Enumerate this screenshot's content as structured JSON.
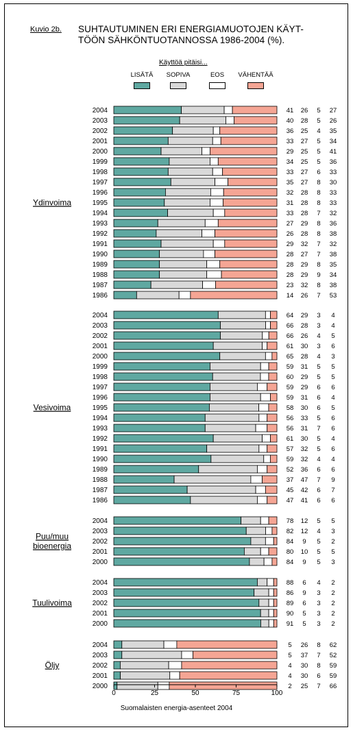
{
  "figure_label": "Kuvio 2b.",
  "title_line1": "SUHTAUTUMINEN ERI ENERGIAMUOTOJEN KÄYT-",
  "title_line2": "TÖÖN SÄHKÖNTUOTANNOSSA 1986-2004 (%).",
  "legend_title": "Käyttöä pitäisi...",
  "footer": "Suomalaisten energia-asenteet 2004",
  "chart_data": {
    "type": "bar",
    "stacked": true,
    "orientation": "horizontal",
    "xlim": [
      0,
      100
    ],
    "x_ticks": [
      "0",
      "25",
      "50",
      "75",
      "100"
    ],
    "legend": [
      {
        "label": "LISÄTÄ",
        "color": "#5fa8a1"
      },
      {
        "label": "SOPIVA",
        "color": "#d9d9d9"
      },
      {
        "label": "EOS",
        "color": "#ffffff"
      },
      {
        "label": "VÄHENTÄÄ",
        "color": "#f5a594"
      }
    ],
    "groups": [
      {
        "name": "Ydinvoima",
        "rows": [
          {
            "year": "2004",
            "values": [
              41,
              26,
              5,
              27
            ]
          },
          {
            "year": "2003",
            "values": [
              40,
              28,
              5,
              26
            ]
          },
          {
            "year": "2002",
            "values": [
              36,
              25,
              4,
              35
            ]
          },
          {
            "year": "2001",
            "values": [
              33,
              27,
              5,
              34
            ]
          },
          {
            "year": "2000",
            "values": [
              29,
              25,
              5,
              41
            ]
          },
          {
            "year": "1999",
            "values": [
              34,
              25,
              5,
              36
            ]
          },
          {
            "year": "1998",
            "values": [
              33,
              27,
              6,
              33
            ]
          },
          {
            "year": "1997",
            "values": [
              35,
              27,
              8,
              30
            ]
          },
          {
            "year": "1996",
            "values": [
              32,
              28,
              8,
              33
            ]
          },
          {
            "year": "1995",
            "values": [
              31,
              28,
              8,
              33
            ]
          },
          {
            "year": "1994",
            "values": [
              33,
              28,
              7,
              32
            ]
          },
          {
            "year": "1993",
            "values": [
              27,
              29,
              8,
              36
            ]
          },
          {
            "year": "1992",
            "values": [
              26,
              28,
              8,
              38
            ]
          },
          {
            "year": "1991",
            "values": [
              29,
              32,
              7,
              32
            ]
          },
          {
            "year": "1990",
            "values": [
              28,
              27,
              7,
              38
            ]
          },
          {
            "year": "1989",
            "values": [
              28,
              29,
              8,
              35
            ]
          },
          {
            "year": "1988",
            "values": [
              28,
              29,
              9,
              34
            ]
          },
          {
            "year": "1987",
            "values": [
              23,
              32,
              8,
              38
            ]
          },
          {
            "year": "1986",
            "values": [
              14,
              26,
              7,
              53
            ]
          }
        ]
      },
      {
        "name": "Vesivoima",
        "rows": [
          {
            "year": "2004",
            "values": [
              64,
              29,
              3,
              4
            ]
          },
          {
            "year": "2003",
            "values": [
              66,
              28,
              3,
              4
            ]
          },
          {
            "year": "2002",
            "values": [
              66,
              26,
              4,
              5
            ]
          },
          {
            "year": "2001",
            "values": [
              61,
              30,
              3,
              6
            ]
          },
          {
            "year": "2000",
            "values": [
              65,
              28,
              4,
              3
            ]
          },
          {
            "year": "1999",
            "values": [
              59,
              31,
              5,
              5
            ]
          },
          {
            "year": "1998",
            "values": [
              60,
              29,
              5,
              5
            ]
          },
          {
            "year": "1997",
            "values": [
              59,
              29,
              6,
              6
            ]
          },
          {
            "year": "1996",
            "values": [
              59,
              31,
              6,
              4
            ]
          },
          {
            "year": "1995",
            "values": [
              58,
              30,
              6,
              5
            ]
          },
          {
            "year": "1994",
            "values": [
              56,
              33,
              5,
              6
            ]
          },
          {
            "year": "1993",
            "values": [
              56,
              31,
              7,
              6
            ]
          },
          {
            "year": "1992",
            "values": [
              61,
              30,
              5,
              4
            ]
          },
          {
            "year": "1991",
            "values": [
              57,
              32,
              5,
              6
            ]
          },
          {
            "year": "1990",
            "values": [
              59,
              32,
              4,
              4
            ]
          },
          {
            "year": "1989",
            "values": [
              52,
              36,
              6,
              6
            ]
          },
          {
            "year": "1988",
            "values": [
              37,
              47,
              7,
              9
            ]
          },
          {
            "year": "1987",
            "values": [
              45,
              42,
              6,
              7
            ]
          },
          {
            "year": "1986",
            "values": [
              47,
              41,
              6,
              6
            ]
          }
        ]
      },
      {
        "name": "Puu/muu bioenergia",
        "name_lines": [
          "Puu/muu",
          "bioenergia"
        ],
        "rows": [
          {
            "year": "2004",
            "values": [
              78,
              12,
              5,
              5
            ]
          },
          {
            "year": "2003",
            "values": [
              82,
              12,
              4,
              3
            ]
          },
          {
            "year": "2002",
            "values": [
              84,
              9,
              5,
              2
            ]
          },
          {
            "year": "2001",
            "values": [
              80,
              10,
              5,
              5
            ]
          },
          {
            "year": "2000",
            "values": [
              84,
              9,
              5,
              3
            ]
          }
        ]
      },
      {
        "name": "Tuulivoima",
        "rows": [
          {
            "year": "2004",
            "values": [
              88,
              6,
              4,
              2
            ]
          },
          {
            "year": "2003",
            "values": [
              86,
              9,
              3,
              2
            ]
          },
          {
            "year": "2002",
            "values": [
              89,
              6,
              3,
              2
            ]
          },
          {
            "year": "2001",
            "values": [
              90,
              5,
              3,
              2
            ]
          },
          {
            "year": "2000",
            "values": [
              91,
              5,
              3,
              2
            ]
          }
        ]
      },
      {
        "name": "Öljy",
        "rows": [
          {
            "year": "2004",
            "values": [
              5,
              26,
              8,
              62
            ]
          },
          {
            "year": "2003",
            "values": [
              5,
              37,
              7,
              52
            ]
          },
          {
            "year": "2002",
            "values": [
              4,
              30,
              8,
              59
            ]
          },
          {
            "year": "2001",
            "values": [
              4,
              30,
              6,
              59
            ]
          },
          {
            "year": "2000",
            "values": [
              2,
              25,
              7,
              66
            ]
          }
        ]
      }
    ]
  }
}
